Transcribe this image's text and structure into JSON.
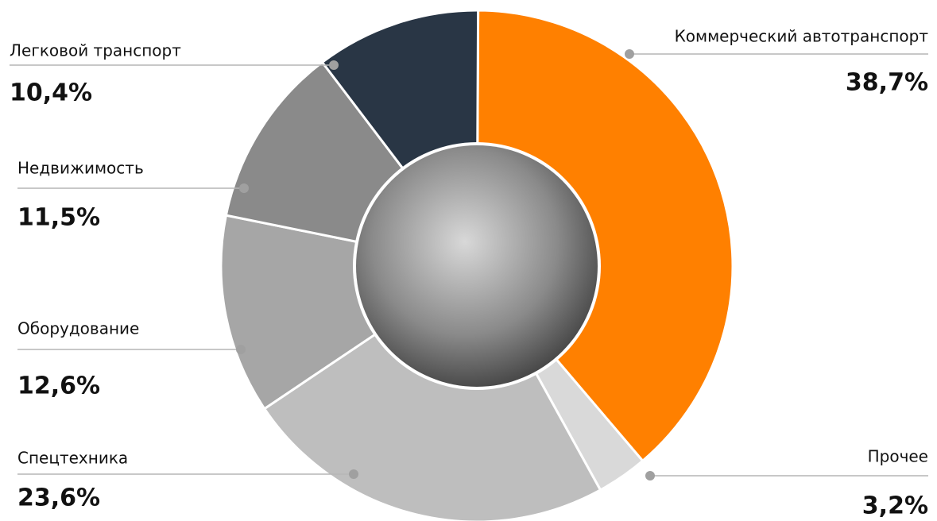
{
  "chart_data": {
    "type": "pie",
    "categories": [
      "Коммерческий автотранспорт",
      "Прочее",
      "Спецтехника",
      "Оборудование",
      "Недвижимость",
      "Легковой транспорт"
    ],
    "values": [
      38.7,
      3.2,
      23.6,
      12.6,
      11.5,
      10.4
    ],
    "value_labels": [
      "38,7%",
      "3,2%",
      "23,6%",
      "12,6%",
      "11,5%",
      "10,4%"
    ],
    "colors": [
      "#ff8000",
      "#d9d9d9",
      "#bebebe",
      "#a6a6a6",
      "#8a8a8a",
      "#293645"
    ]
  }
}
